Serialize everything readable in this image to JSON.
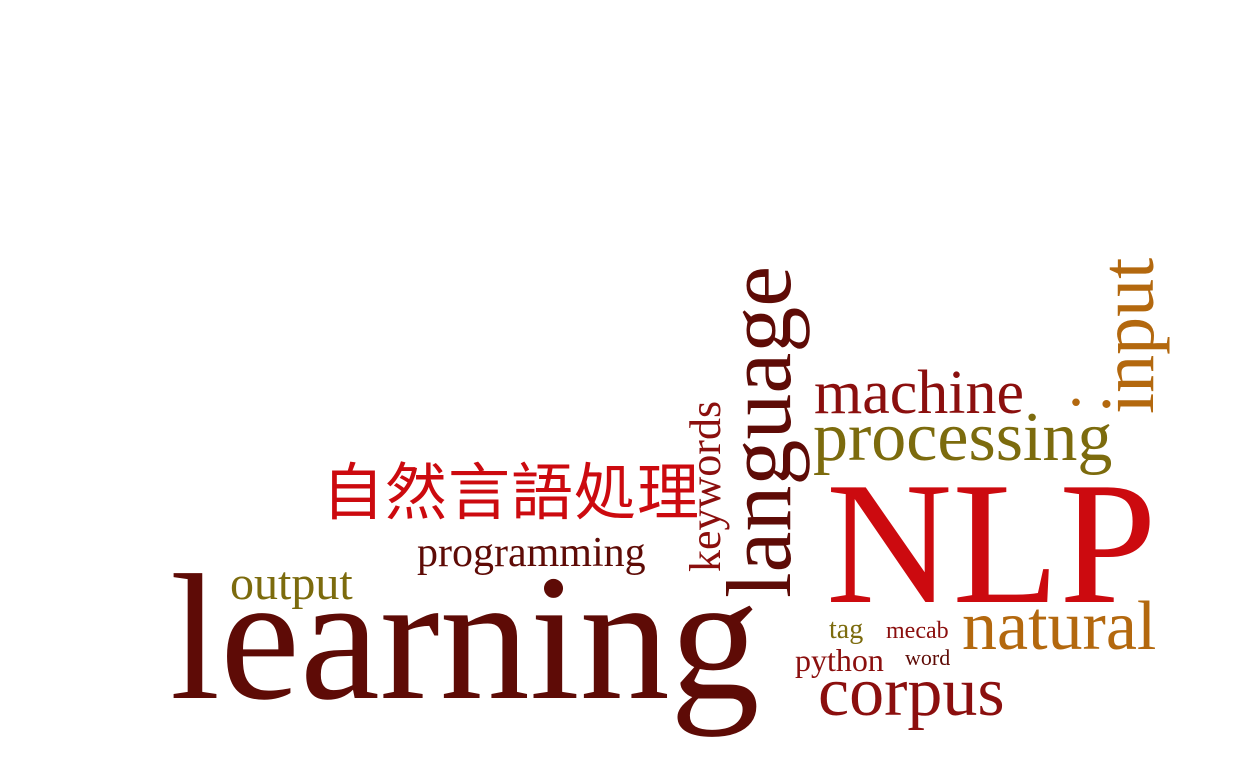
{
  "words": {
    "nlp": "NLP",
    "learning": "learning",
    "language": "language",
    "processing": "processing",
    "machine": "machine",
    "natural": "natural",
    "corpus": "corpus",
    "input": "input",
    "jp_nlp": "自然言語処理",
    "programming": "programming",
    "output": "output",
    "keywords": "keywords",
    "tag": "tag",
    "mecab": "mecab",
    "python": "python",
    "word": "word",
    "dot": "."
  },
  "colors": {
    "dark_maroon": "#5e0b06",
    "maroon": "#8b0f0e",
    "red": "#cc0a0f",
    "olive": "#7c6b0d",
    "orange_brown": "#b3680e"
  }
}
